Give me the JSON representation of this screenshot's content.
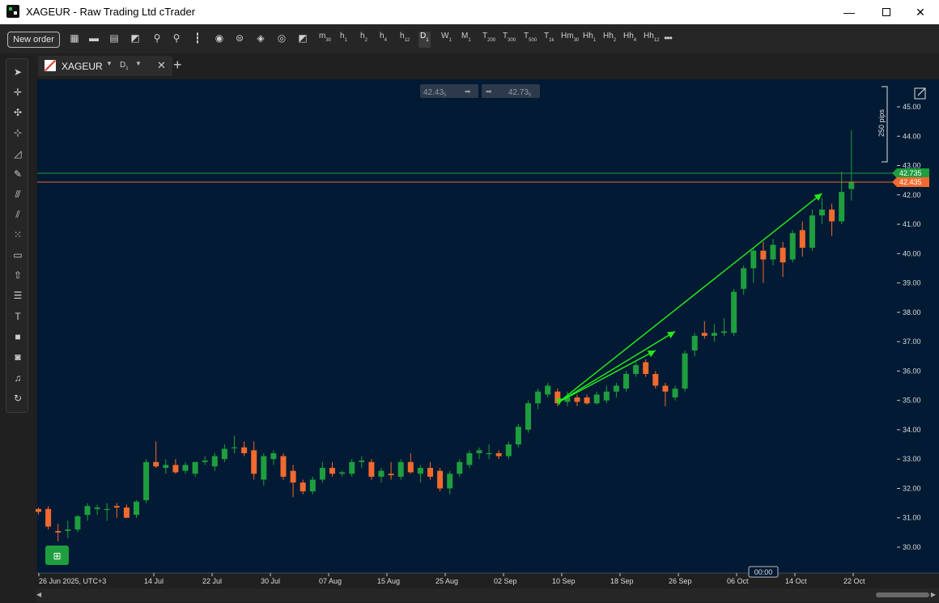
{
  "window": {
    "title": "XAGEUR - Raw Trading Ltd cTrader"
  },
  "toolbar": {
    "new_order_label": "New order",
    "timeframes": [
      {
        "main": "m",
        "sub": "30"
      },
      {
        "main": "h",
        "sub": "1"
      },
      {
        "main": "h",
        "sub": "2"
      },
      {
        "main": "h",
        "sub": "4"
      },
      {
        "main": "h",
        "sub": "12"
      },
      {
        "main": "D",
        "sub": "1",
        "active": true
      },
      {
        "main": "W",
        "sub": "1"
      },
      {
        "main": "M",
        "sub": "1"
      },
      {
        "main": "T",
        "sub": "200"
      },
      {
        "main": "T",
        "sub": "300"
      },
      {
        "main": "T",
        "sub": "500"
      },
      {
        "main": "T",
        "sub": "1k"
      },
      {
        "main": "Hm",
        "sub": "30"
      },
      {
        "main": "Hh",
        "sub": "1"
      },
      {
        "main": "Hh",
        "sub": "2"
      },
      {
        "main": "Hh",
        "sub": "4"
      },
      {
        "main": "Hh",
        "sub": "12"
      }
    ],
    "more_label": "•••"
  },
  "tab": {
    "symbol": "XAGEUR",
    "timeframe_main": "D",
    "timeframe_sub": "1"
  },
  "quote": {
    "bid": "42.43",
    "bid_sup": "5",
    "ask": "42.73",
    "ask_sup": "5"
  },
  "price_lines": {
    "ask": "42.735",
    "bid": "42.435"
  },
  "measure_label": "250 pips",
  "countdown": "00:00",
  "colors": {
    "background": "#021A33",
    "bull": "#1E9E3E",
    "bear": "#F26A2E",
    "ask_line": "#1E9E3E",
    "bid_line": "#F26A2E",
    "arrow": "#26E61A"
  },
  "chart_data": {
    "type": "candlestick",
    "title": "",
    "y_ticks": [
      "30.00",
      "31.00",
      "32.00",
      "33.00",
      "34.00",
      "35.00",
      "36.00",
      "37.00",
      "38.00",
      "39.00",
      "40.00",
      "41.00",
      "42.00",
      "43.00",
      "44.00",
      "45.00"
    ],
    "x_ticks": [
      "26 Jun 2025, UTC+3",
      "14 Jul",
      "22 Jul",
      "30 Jul",
      "07 Aug",
      "15 Aug",
      "25 Aug",
      "02 Sep",
      "10 Sep",
      "18 Sep",
      "26 Sep",
      "06 Oct",
      "14 Oct",
      "22 Oct"
    ],
    "ylim": [
      29.5,
      45.8
    ],
    "candles": [
      {
        "o": 31.3,
        "h": 31.35,
        "l": 31.1,
        "c": 31.2
      },
      {
        "o": 31.3,
        "h": 31.4,
        "l": 30.6,
        "c": 30.7
      },
      {
        "o": 30.55,
        "h": 30.8,
        "l": 30.2,
        "c": 30.5
      },
      {
        "o": 30.55,
        "h": 30.9,
        "l": 30.3,
        "c": 30.6
      },
      {
        "o": 30.6,
        "h": 31.1,
        "l": 30.5,
        "c": 31.05
      },
      {
        "o": 31.1,
        "h": 31.5,
        "l": 30.9,
        "c": 31.4
      },
      {
        "o": 31.3,
        "h": 31.45,
        "l": 31.1,
        "c": 31.35
      },
      {
        "o": 31.3,
        "h": 31.5,
        "l": 30.9,
        "c": 31.3
      },
      {
        "o": 31.4,
        "h": 31.5,
        "l": 31.0,
        "c": 31.35
      },
      {
        "o": 31.35,
        "h": 31.45,
        "l": 31.0,
        "c": 31.0
      },
      {
        "o": 31.1,
        "h": 31.6,
        "l": 31.0,
        "c": 31.55
      },
      {
        "o": 31.6,
        "h": 33.0,
        "l": 31.5,
        "c": 32.9
      },
      {
        "o": 32.9,
        "h": 33.6,
        "l": 32.7,
        "c": 32.75
      },
      {
        "o": 32.7,
        "h": 33.0,
        "l": 32.5,
        "c": 32.8
      },
      {
        "o": 32.8,
        "h": 33.0,
        "l": 32.5,
        "c": 32.55
      },
      {
        "o": 32.6,
        "h": 32.9,
        "l": 32.5,
        "c": 32.8
      },
      {
        "o": 32.5,
        "h": 32.9,
        "l": 32.4,
        "c": 32.9
      },
      {
        "o": 32.9,
        "h": 33.1,
        "l": 32.8,
        "c": 32.95
      },
      {
        "o": 32.75,
        "h": 33.2,
        "l": 32.6,
        "c": 33.1
      },
      {
        "o": 33.0,
        "h": 33.5,
        "l": 32.9,
        "c": 33.35
      },
      {
        "o": 33.4,
        "h": 33.8,
        "l": 33.2,
        "c": 33.4
      },
      {
        "o": 33.4,
        "h": 33.6,
        "l": 33.1,
        "c": 33.2
      },
      {
        "o": 33.3,
        "h": 33.6,
        "l": 32.3,
        "c": 32.5
      },
      {
        "o": 32.3,
        "h": 33.2,
        "l": 32.1,
        "c": 33.1
      },
      {
        "o": 33.0,
        "h": 33.3,
        "l": 32.8,
        "c": 33.2
      },
      {
        "o": 33.1,
        "h": 33.2,
        "l": 32.3,
        "c": 32.4
      },
      {
        "o": 32.6,
        "h": 32.8,
        "l": 31.7,
        "c": 32.2
      },
      {
        "o": 32.2,
        "h": 32.3,
        "l": 31.8,
        "c": 31.9
      },
      {
        "o": 31.9,
        "h": 32.4,
        "l": 31.8,
        "c": 32.3
      },
      {
        "o": 32.3,
        "h": 32.9,
        "l": 32.2,
        "c": 32.7
      },
      {
        "o": 32.7,
        "h": 32.9,
        "l": 32.4,
        "c": 32.5
      },
      {
        "o": 32.5,
        "h": 32.6,
        "l": 32.4,
        "c": 32.55
      },
      {
        "o": 32.5,
        "h": 33.0,
        "l": 32.4,
        "c": 32.9
      },
      {
        "o": 32.9,
        "h": 33.1,
        "l": 32.7,
        "c": 32.95
      },
      {
        "o": 32.9,
        "h": 33.0,
        "l": 32.3,
        "c": 32.4
      },
      {
        "o": 32.4,
        "h": 32.7,
        "l": 32.2,
        "c": 32.6
      },
      {
        "o": 32.5,
        "h": 32.9,
        "l": 32.3,
        "c": 32.45
      },
      {
        "o": 32.4,
        "h": 33.0,
        "l": 32.3,
        "c": 32.9
      },
      {
        "o": 32.9,
        "h": 33.2,
        "l": 32.5,
        "c": 32.55
      },
      {
        "o": 32.5,
        "h": 32.8,
        "l": 32.2,
        "c": 32.7
      },
      {
        "o": 32.7,
        "h": 32.9,
        "l": 32.3,
        "c": 32.4
      },
      {
        "o": 32.6,
        "h": 32.7,
        "l": 31.9,
        "c": 32.0
      },
      {
        "o": 32.0,
        "h": 32.6,
        "l": 31.8,
        "c": 32.5
      },
      {
        "o": 32.5,
        "h": 33.0,
        "l": 32.4,
        "c": 32.9
      },
      {
        "o": 32.8,
        "h": 33.3,
        "l": 32.7,
        "c": 33.2
      },
      {
        "o": 33.2,
        "h": 33.4,
        "l": 33.0,
        "c": 33.3
      },
      {
        "o": 33.2,
        "h": 33.5,
        "l": 33.0,
        "c": 33.2
      },
      {
        "o": 33.2,
        "h": 33.3,
        "l": 33.0,
        "c": 33.1
      },
      {
        "o": 33.1,
        "h": 33.6,
        "l": 33.0,
        "c": 33.5
      },
      {
        "o": 33.5,
        "h": 34.2,
        "l": 33.4,
        "c": 34.1
      },
      {
        "o": 34.0,
        "h": 35.0,
        "l": 33.9,
        "c": 34.9
      },
      {
        "o": 34.9,
        "h": 35.4,
        "l": 34.7,
        "c": 35.3
      },
      {
        "o": 35.2,
        "h": 35.6,
        "l": 35.1,
        "c": 35.5
      },
      {
        "o": 35.3,
        "h": 35.4,
        "l": 34.8,
        "c": 34.9
      },
      {
        "o": 34.95,
        "h": 35.3,
        "l": 34.8,
        "c": 35.1
      },
      {
        "o": 35.1,
        "h": 35.2,
        "l": 34.8,
        "c": 34.95
      },
      {
        "o": 35.1,
        "h": 35.2,
        "l": 34.85,
        "c": 34.9
      },
      {
        "o": 34.9,
        "h": 35.3,
        "l": 34.85,
        "c": 35.2
      },
      {
        "o": 35.0,
        "h": 35.5,
        "l": 34.9,
        "c": 35.3
      },
      {
        "o": 35.3,
        "h": 35.6,
        "l": 35.1,
        "c": 35.5
      },
      {
        "o": 35.4,
        "h": 36.0,
        "l": 35.3,
        "c": 35.9
      },
      {
        "o": 35.9,
        "h": 36.3,
        "l": 35.8,
        "c": 36.2
      },
      {
        "o": 36.3,
        "h": 36.4,
        "l": 35.8,
        "c": 35.9
      },
      {
        "o": 35.9,
        "h": 36.0,
        "l": 35.4,
        "c": 35.5
      },
      {
        "o": 35.5,
        "h": 35.6,
        "l": 34.8,
        "c": 35.3
      },
      {
        "o": 35.1,
        "h": 35.5,
        "l": 35.0,
        "c": 35.4
      },
      {
        "o": 35.4,
        "h": 36.7,
        "l": 35.3,
        "c": 36.6
      },
      {
        "o": 36.7,
        "h": 37.3,
        "l": 36.5,
        "c": 37.2
      },
      {
        "o": 37.3,
        "h": 37.7,
        "l": 37.1,
        "c": 37.2
      },
      {
        "o": 37.2,
        "h": 37.6,
        "l": 37.0,
        "c": 37.3
      },
      {
        "o": 37.3,
        "h": 37.8,
        "l": 37.2,
        "c": 37.35
      },
      {
        "o": 37.3,
        "h": 38.8,
        "l": 37.2,
        "c": 38.7
      },
      {
        "o": 38.8,
        "h": 39.6,
        "l": 38.6,
        "c": 39.5
      },
      {
        "o": 39.5,
        "h": 40.2,
        "l": 39.0,
        "c": 40.1
      },
      {
        "o": 40.1,
        "h": 40.4,
        "l": 39.0,
        "c": 39.8
      },
      {
        "o": 39.8,
        "h": 40.5,
        "l": 39.6,
        "c": 40.3
      },
      {
        "o": 40.2,
        "h": 40.4,
        "l": 39.2,
        "c": 39.7
      },
      {
        "o": 39.8,
        "h": 40.8,
        "l": 39.7,
        "c": 40.7
      },
      {
        "o": 40.8,
        "h": 41.1,
        "l": 39.9,
        "c": 40.2
      },
      {
        "o": 40.2,
        "h": 41.5,
        "l": 40.1,
        "c": 41.3
      },
      {
        "o": 41.3,
        "h": 41.9,
        "l": 41.0,
        "c": 41.5
      },
      {
        "o": 41.5,
        "h": 41.7,
        "l": 40.6,
        "c": 41.1
      },
      {
        "o": 41.1,
        "h": 42.8,
        "l": 41.0,
        "c": 42.1
      },
      {
        "o": 42.2,
        "h": 44.2,
        "l": 41.8,
        "c": 42.45
      }
    ],
    "drawn_arrows": [
      {
        "from": 53,
        "y1": 34.95,
        "to": 80,
        "y2": 42.05
      },
      {
        "from": 53,
        "y1": 34.95,
        "to": 63,
        "y2": 36.7
      },
      {
        "from": 53,
        "y1": 34.95,
        "to": 65,
        "y2": 37.35
      }
    ]
  }
}
